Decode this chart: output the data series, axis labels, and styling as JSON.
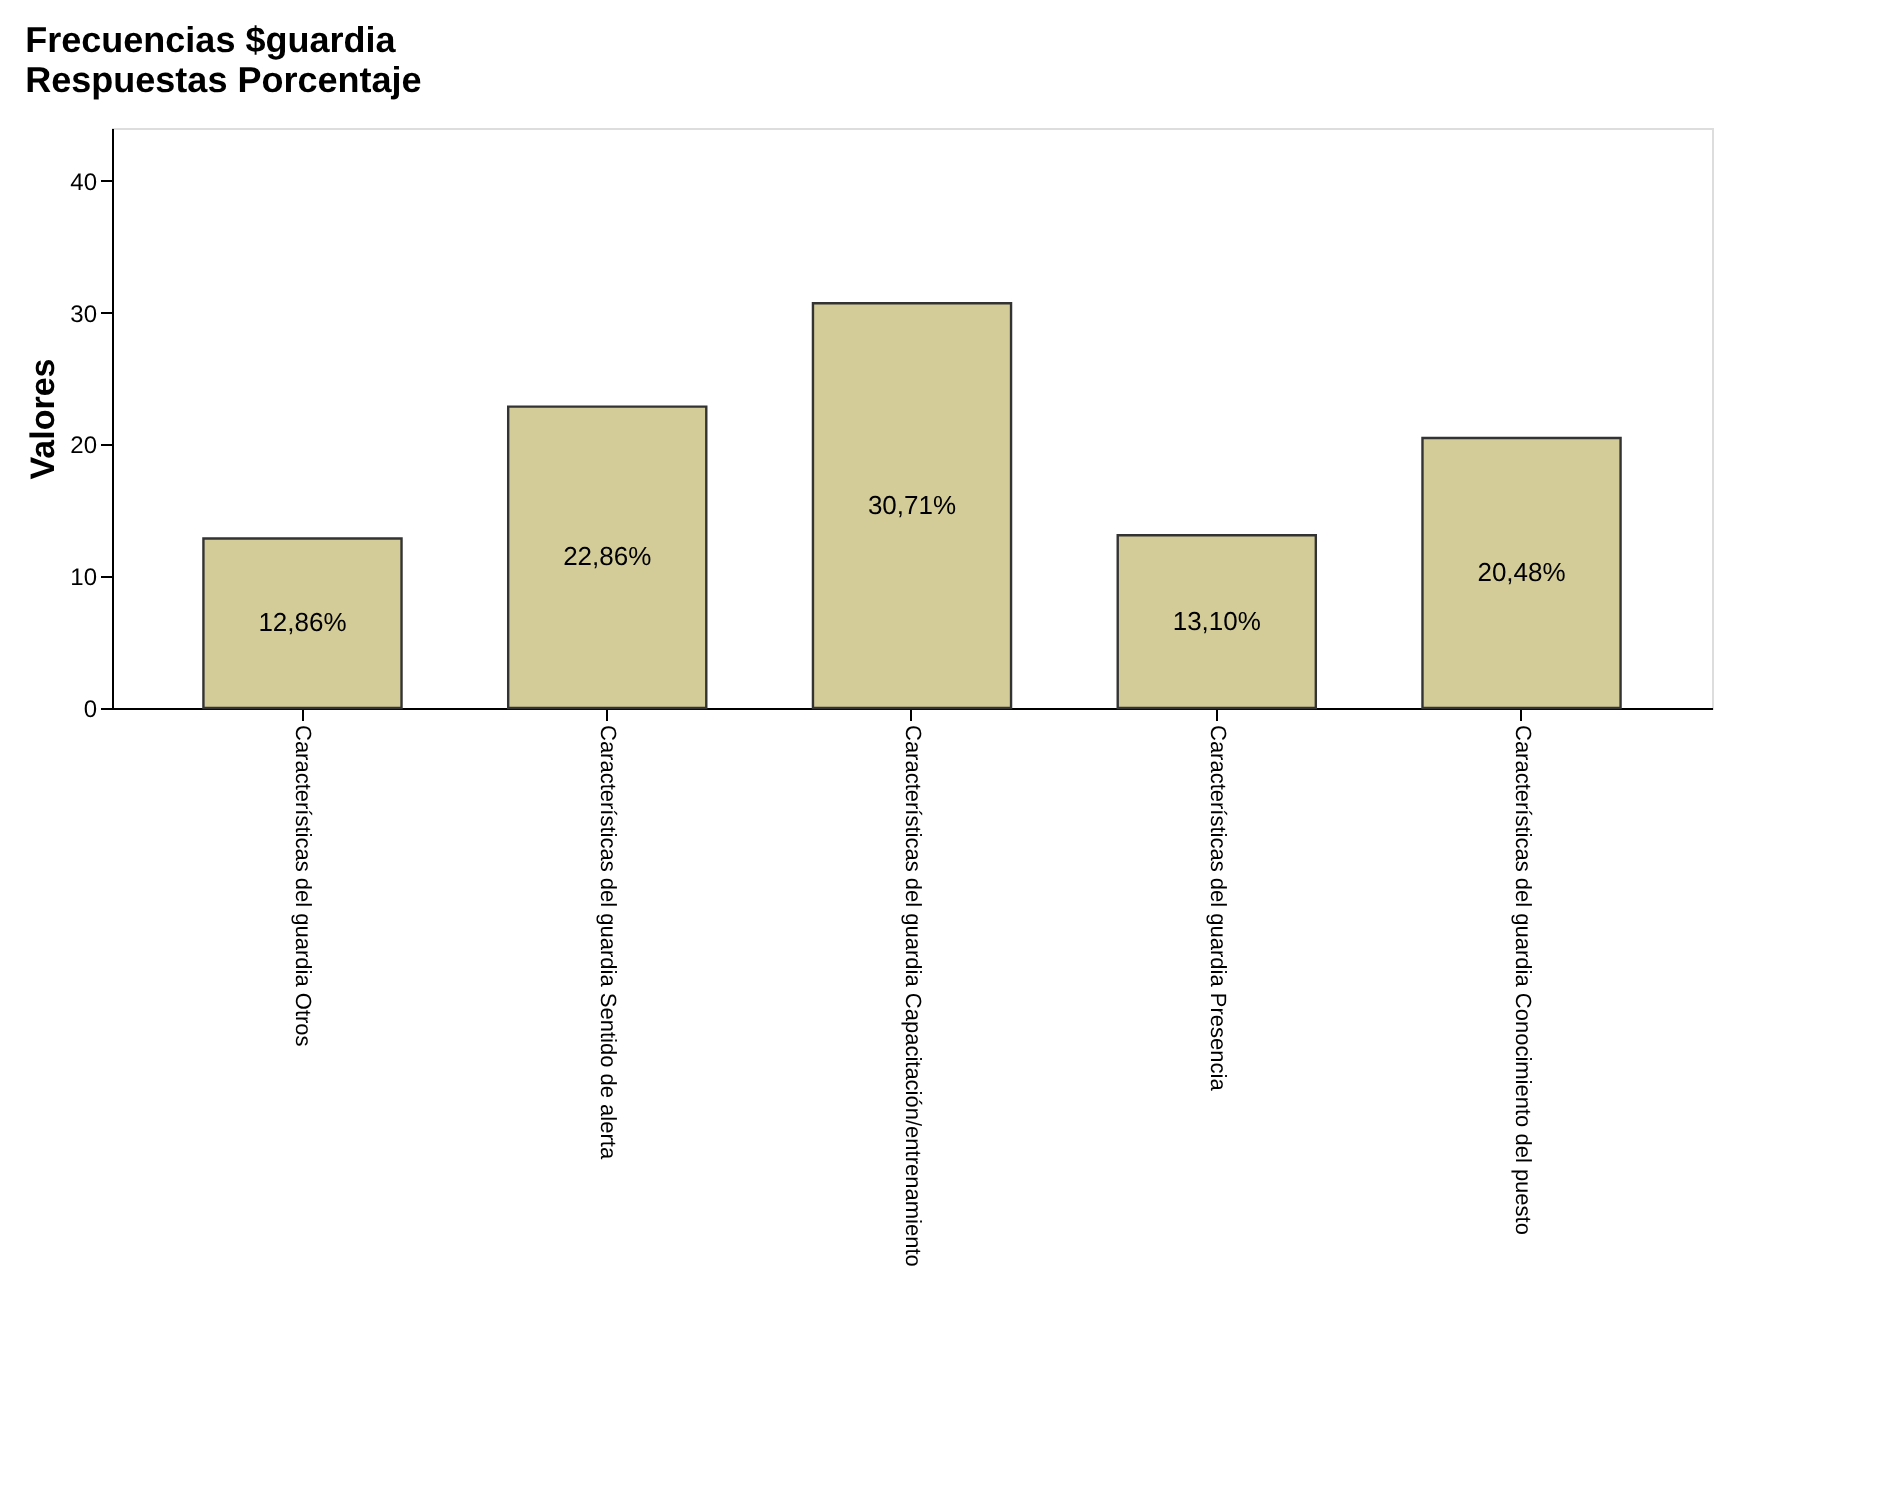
{
  "chart_data": {
    "type": "bar",
    "title": [
      "Frecuencias $guardia",
      "Respuestas Porcentaje"
    ],
    "ylabel": "Valores",
    "categories": [
      "Características del guardia Otros",
      "Características del guardia Sentido de alerta",
      "Características del guardia Capacitación/entrenamiento",
      "Características del guardia Presencia",
      "Características del guardia Conocimiento del puesto"
    ],
    "values": [
      12.86,
      22.86,
      30.71,
      13.1,
      20.48
    ],
    "value_labels": [
      "12,86%",
      "22,86%",
      "30,71%",
      "13,10%",
      "20,48%"
    ],
    "color": "#d3cc98",
    "ylim": [
      0,
      44
    ],
    "yticks": [
      0,
      10,
      20,
      30,
      40
    ],
    "grid": false
  }
}
